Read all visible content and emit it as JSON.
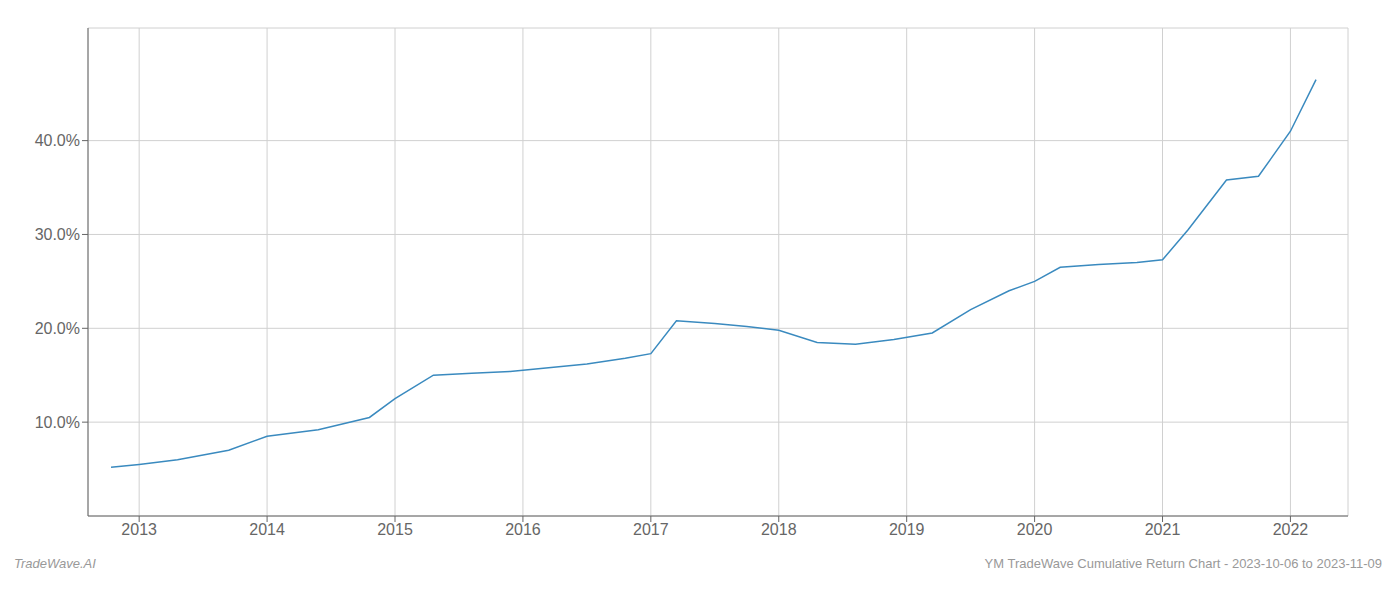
{
  "chart_data": {
    "type": "line",
    "x": [
      2012.78,
      2013.0,
      2013.3,
      2013.7,
      2014.0,
      2014.4,
      2014.8,
      2015.0,
      2015.3,
      2015.6,
      2015.9,
      2016.2,
      2016.5,
      2016.8,
      2017.0,
      2017.2,
      2017.5,
      2017.75,
      2018.0,
      2018.3,
      2018.6,
      2018.9,
      2019.2,
      2019.5,
      2019.8,
      2020.0,
      2020.2,
      2020.5,
      2020.8,
      2021.0,
      2021.2,
      2021.5,
      2021.75,
      2022.0,
      2022.2
    ],
    "values": [
      5.2,
      5.5,
      6.0,
      7.0,
      8.5,
      9.2,
      10.5,
      12.5,
      15.0,
      15.2,
      15.4,
      15.8,
      16.2,
      16.8,
      17.3,
      20.8,
      20.5,
      20.2,
      19.8,
      18.5,
      18.3,
      18.8,
      19.5,
      22.0,
      24.0,
      25.0,
      26.5,
      26.8,
      27.0,
      27.3,
      30.5,
      35.8,
      36.2,
      41.0,
      46.5
    ],
    "color": "#3a8abf",
    "xlim": [
      2012.6,
      2022.45
    ],
    "xticks": [
      2013,
      2014,
      2015,
      2016,
      2017,
      2018,
      2019,
      2020,
      2021,
      2022
    ],
    "ylim": [
      0,
      52
    ],
    "yticks": [
      {
        "value": 10.0,
        "label": "10.0%"
      },
      {
        "value": 20.0,
        "label": "20.0%"
      },
      {
        "value": 30.0,
        "label": "30.0%"
      },
      {
        "value": 40.0,
        "label": "40.0%"
      }
    ],
    "grid": true,
    "annotations": [
      "TradeWave.AI",
      "YM TradeWave Cumulative Return Chart - 2023-10-06 to 2023-11-09"
    ]
  }
}
